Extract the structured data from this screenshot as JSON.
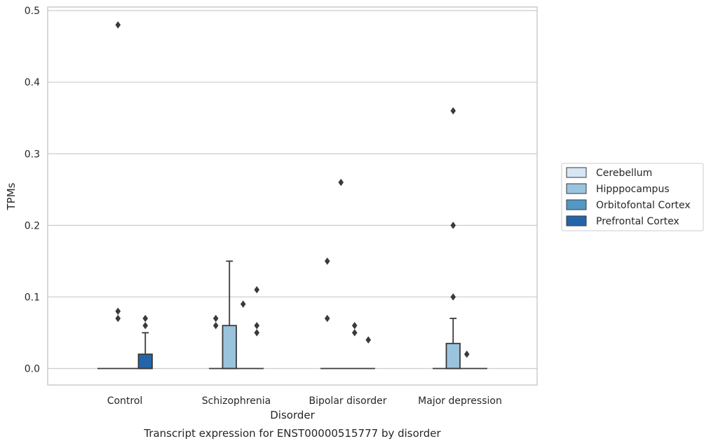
{
  "chart_data": {
    "type": "box",
    "caption": "Transcript expression for ENST00000515777 by disorder",
    "xlabel": "Disorder",
    "ylabel": "TPMs",
    "ylim": [
      -0.023,
      0.505
    ],
    "yticks": [
      0.0,
      0.1,
      0.2,
      0.3,
      0.4,
      0.5
    ],
    "ytick_labels": [
      "0.0",
      "0.1",
      "0.2",
      "0.3",
      "0.4",
      "0.5"
    ],
    "grid": "horizontal",
    "legend_position": "right-center",
    "categories": [
      "Control",
      "Schizophrenia",
      "Bipolar disorder",
      "Major depression"
    ],
    "series": [
      {
        "name": "Cerebellum",
        "color": "#d6e6f4",
        "boxes": [
          {
            "q1": 0,
            "median": 0,
            "q3": 0,
            "whisker_low": 0,
            "whisker_high": 0,
            "outliers": []
          },
          {
            "q1": 0,
            "median": 0,
            "q3": 0,
            "whisker_low": 0,
            "whisker_high": 0,
            "outliers": []
          },
          {
            "q1": 0,
            "median": 0,
            "q3": 0,
            "whisker_low": 0,
            "whisker_high": 0,
            "outliers": []
          },
          {
            "q1": 0,
            "median": 0,
            "q3": 0,
            "whisker_low": 0,
            "whisker_high": 0,
            "outliers": []
          }
        ]
      },
      {
        "name": "Hipppocampus",
        "color": "#9ac4de",
        "boxes": [
          {
            "q1": 0,
            "median": 0,
            "q3": 0,
            "whisker_low": 0,
            "whisker_high": 0,
            "outliers": [
              0.48,
              0.08,
              0.07
            ]
          },
          {
            "q1": 0,
            "median": 0,
            "q3": 0.06,
            "whisker_low": 0,
            "whisker_high": 0.15,
            "outliers": []
          },
          {
            "q1": 0,
            "median": 0,
            "q3": 0,
            "whisker_low": 0,
            "whisker_high": 0,
            "outliers": [
              0.26
            ]
          },
          {
            "q1": 0,
            "median": 0,
            "q3": 0.035,
            "whisker_low": 0,
            "whisker_high": 0.07,
            "outliers": [
              0.36,
              0.2,
              0.1
            ]
          }
        ]
      },
      {
        "name": "Orbitofontal Cortex",
        "color": "#5399c6",
        "boxes": [
          {
            "q1": 0,
            "median": 0,
            "q3": 0,
            "whisker_low": 0,
            "whisker_high": 0,
            "outliers": []
          },
          {
            "q1": 0,
            "median": 0,
            "q3": 0,
            "whisker_low": 0,
            "whisker_high": 0,
            "outliers": [
              0.09
            ]
          },
          {
            "q1": 0,
            "median": 0,
            "q3": 0,
            "whisker_low": 0,
            "whisker_high": 0,
            "outliers": []
          },
          {
            "q1": 0,
            "median": 0,
            "q3": 0,
            "whisker_low": 0,
            "whisker_high": 0,
            "outliers": [
              0.02
            ]
          }
        ]
      },
      {
        "name": "Prefrontal Cortex",
        "color": "#2465a9",
        "boxes": [
          {
            "q1": 0,
            "median": 0,
            "q3": 0.02,
            "whisker_low": 0,
            "whisker_high": 0.05,
            "outliers": []
          },
          {
            "q1": 0,
            "median": 0,
            "q3": 0,
            "whisker_low": 0,
            "whisker_high": 0,
            "outliers": [
              0.11,
              0.06,
              0.05
            ]
          },
          {
            "q1": 0,
            "median": 0,
            "q3": 0,
            "whisker_low": 0,
            "whisker_high": 0,
            "outliers": []
          },
          {
            "q1": 0,
            "median": 0,
            "q3": 0,
            "whisker_low": 0,
            "whisker_high": 0,
            "outliers": []
          }
        ]
      }
    ],
    "extra_outliers": [
      {
        "category_index": 0,
        "x_offset": 1.5,
        "values": [
          0.07,
          0.06
        ]
      },
      {
        "category_index": 1,
        "x_offset": -1.5,
        "values": [
          0.07,
          0.06
        ]
      },
      {
        "category_index": 2,
        "x_offset": -1.5,
        "values": [
          0.15,
          0.07
        ]
      },
      {
        "category_index": 2,
        "x_offset": 0.5,
        "values": [
          0.06,
          0.05
        ]
      },
      {
        "category_index": 2,
        "x_offset": 1.5,
        "values": [
          0.04
        ]
      }
    ]
  }
}
